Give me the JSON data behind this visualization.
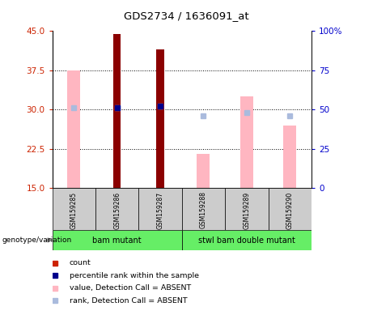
{
  "title": "GDS2734 / 1636091_at",
  "samples": [
    "GSM159285",
    "GSM159286",
    "GSM159287",
    "GSM159288",
    "GSM159289",
    "GSM159290"
  ],
  "ylim_left": [
    15,
    45
  ],
  "ylim_right": [
    0,
    100
  ],
  "yticks_left": [
    15,
    22.5,
    30,
    37.5,
    45
  ],
  "yticks_right": [
    0,
    25,
    50,
    75,
    100
  ],
  "ytick_labels_right": [
    "0",
    "25",
    "50",
    "75",
    "100%"
  ],
  "count_color": "#8B0000",
  "absent_value_color": "#FFB6C1",
  "absent_rank_color": "#AABBDD",
  "percentile_rank_color": "#00008B",
  "count_bar_width": 0.18,
  "absent_bar_width": 0.3,
  "count_values": [
    null,
    44.5,
    41.5,
    null,
    null,
    null
  ],
  "absent_value_bars": [
    37.5,
    15.0,
    15.0,
    21.5,
    32.5,
    27.0
  ],
  "absent_rank_pct": [
    51,
    51,
    52,
    46,
    48,
    46
  ],
  "percentile_rank_pct": [
    null,
    51,
    52,
    null,
    null,
    null
  ],
  "left_tick_color": "#CC2200",
  "right_tick_color": "#0000CC",
  "group_color": "#66EE66",
  "sample_box_color": "#CCCCCC",
  "legend_items": [
    {
      "color": "#CC2200",
      "label": "count"
    },
    {
      "color": "#00008B",
      "label": "percentile rank within the sample"
    },
    {
      "color": "#FFB6C1",
      "label": "value, Detection Call = ABSENT"
    },
    {
      "color": "#AABBDD",
      "label": "rank, Detection Call = ABSENT"
    }
  ]
}
